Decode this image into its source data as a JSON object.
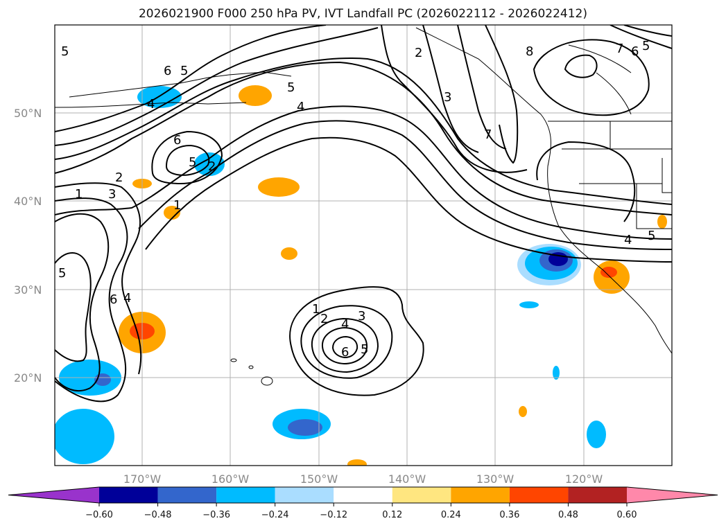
{
  "title": "2026021900 F000 250 hPa PV, IVT Landfall PC (2026022112 - 2026022412)",
  "lat_labels": [
    "50°N",
    "40°N",
    "30°N",
    "20°N"
  ],
  "lon_labels": [
    "170°W",
    "160°W",
    "150°W",
    "140°W",
    "130°W",
    "120°W"
  ],
  "contour_labels": [
    "5",
    "6",
    "5",
    "4",
    "5",
    "4",
    "6",
    "5",
    "2",
    "1",
    "2",
    "3",
    "1",
    "5",
    "6",
    "4",
    "1",
    "2",
    "4",
    "3",
    "6",
    "5",
    "2",
    "3",
    "8",
    "7",
    "4",
    "5",
    "7",
    "6",
    "5"
  ],
  "colorbar": {
    "ticks": [
      "−0.60",
      "−0.48",
      "−0.36",
      "−0.24",
      "−0.12",
      "0.12",
      "0.24",
      "0.36",
      "0.48",
      "0.60"
    ],
    "colors": [
      "#9933cc",
      "#000099",
      "#3366cc",
      "#00bbff",
      "#aaddff",
      "#ffffff",
      "#ffe680",
      "#ffa500",
      "#ff4500",
      "#b22222",
      "#ff88aa"
    ]
  }
}
